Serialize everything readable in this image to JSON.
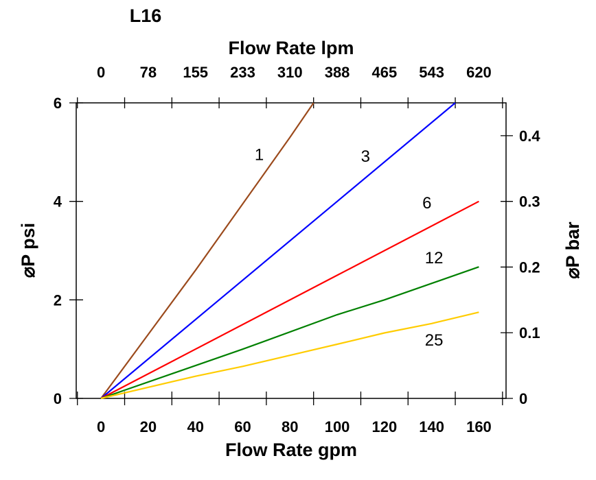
{
  "chart_data": {
    "type": "line",
    "title": "L16",
    "xlabel": "Flow Rate gpm",
    "x2label": "Flow Rate lpm",
    "ylabel": "⌀P psi",
    "y2label": "⌀P bar",
    "xlim": [
      -10.5,
      171.5
    ],
    "ylim": [
      0,
      6
    ],
    "y2lim": [
      0,
      0.45
    ],
    "grid": false,
    "x_ticks": [
      "0",
      "20",
      "40",
      "60",
      "80",
      "100",
      "120",
      "140",
      "160"
    ],
    "x_tick_values": [
      0,
      20,
      40,
      60,
      80,
      100,
      120,
      140,
      160
    ],
    "x2_ticks": [
      "0",
      "78",
      "155",
      "233",
      "310",
      "388",
      "465",
      "543",
      "620"
    ],
    "y_ticks": [
      "0",
      "2",
      "4",
      "6"
    ],
    "y_tick_values": [
      0,
      2,
      4,
      6
    ],
    "y2_ticks": [
      "0",
      "0.1",
      "0.2",
      "0.3",
      "0.4"
    ],
    "y2_tick_values": [
      0,
      0.1,
      0.2,
      0.3,
      0.4
    ],
    "series": [
      {
        "name": "1",
        "color": "#9b4a1c",
        "x": [
          0,
          20,
          40,
          60,
          80,
          90
        ],
        "y": [
          0,
          1.3,
          2.6,
          3.95,
          5.3,
          6
        ],
        "label_at": [
          67,
          4.96
        ]
      },
      {
        "name": "3",
        "color": "#0000ff",
        "x": [
          0,
          50,
          100,
          150
        ],
        "y": [
          0,
          2,
          4,
          6
        ],
        "label_at": [
          112,
          4.93
        ]
      },
      {
        "name": "6",
        "color": "#ff0000",
        "x": [
          0,
          40,
          100,
          160
        ],
        "y": [
          0,
          1,
          2.5,
          4
        ],
        "label_at": [
          138,
          3.98
        ]
      },
      {
        "name": "12",
        "color": "#008000",
        "x": [
          0,
          60,
          100,
          120,
          160
        ],
        "y": [
          0,
          1,
          1.7,
          2,
          2.67
        ],
        "label_at": [
          141,
          2.87
        ]
      },
      {
        "name": "25",
        "color": "#ffcc00",
        "x": [
          0,
          40,
          60,
          100,
          120,
          140,
          160
        ],
        "y": [
          0,
          0.45,
          0.65,
          1.1,
          1.33,
          1.52,
          1.75
        ],
        "label_at": [
          141,
          1.2
        ]
      }
    ]
  }
}
